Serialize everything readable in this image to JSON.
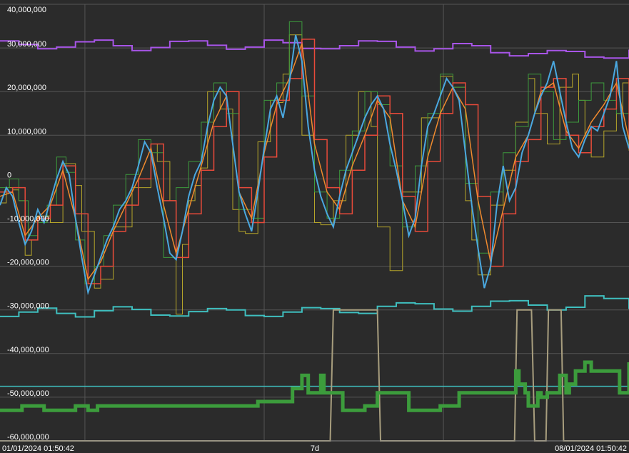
{
  "chart_data": {
    "type": "line",
    "title": "",
    "xlabel": "",
    "ylabel": "",
    "ylim": [
      -60000000,
      40000000
    ],
    "grid": true,
    "background": "#2b2b2b",
    "grid_color": "#555555",
    "text_color": "#ffffff",
    "y_ticks": [
      40000000,
      30000000,
      20000000,
      10000000,
      0,
      -10000000,
      -20000000,
      -30000000,
      -40000000,
      -50000000,
      -60000000
    ],
    "y_tick_labels": [
      "40,000,000",
      "30,000,000",
      "20,000,000",
      "10,000,000",
      "0",
      "-10,000,000",
      "-20,000,000",
      "-30,000,000",
      "-40,000,000",
      "-50,000,000",
      "-60,000,000"
    ],
    "x_labels": {
      "start": "01/01/2024 01:50:42",
      "middle": "7d",
      "end": "08/01/2024 01:50:42"
    },
    "series": [
      {
        "color": "#a855e8",
        "width": 2,
        "step": true,
        "x": [
          0,
          0.03,
          0.06,
          0.09,
          0.12,
          0.15,
          0.18,
          0.21,
          0.24,
          0.27,
          0.3,
          0.33,
          0.36,
          0.39,
          0.42,
          0.45,
          0.48,
          0.51,
          0.54,
          0.57,
          0.6,
          0.63,
          0.66,
          0.69,
          0.72,
          0.75,
          0.78,
          0.81,
          0.84,
          0.87,
          0.9,
          0.93,
          0.96,
          1.0
        ],
        "y": [
          31.6,
          30.8,
          29.8,
          30.2,
          31.4,
          31.8,
          30.5,
          29.4,
          30.1,
          31.5,
          31.6,
          30.6,
          29.7,
          30.2,
          31.8,
          31.2,
          29.9,
          29.8,
          30.5,
          31.6,
          31.5,
          30.2,
          29.3,
          29.8,
          31.0,
          30.5,
          28.9,
          28.2,
          28.7,
          29.4,
          29.2,
          27.9,
          27.7,
          29.6
        ]
      },
      {
        "color": "#3fbfbf",
        "width": 2,
        "step": true,
        "x": [
          0,
          0.03,
          0.06,
          0.09,
          0.12,
          0.15,
          0.18,
          0.21,
          0.24,
          0.27,
          0.3,
          0.33,
          0.36,
          0.39,
          0.42,
          0.45,
          0.48,
          0.51,
          0.54,
          0.57,
          0.6,
          0.63,
          0.66,
          0.69,
          0.72,
          0.75,
          0.78,
          0.81,
          0.84,
          0.87,
          0.9,
          0.93,
          0.96,
          1.0
        ],
        "y": [
          -31.5,
          -30.5,
          -29.6,
          -30.8,
          -31.6,
          -30.2,
          -29.3,
          -29.9,
          -31.2,
          -31.4,
          -30.4,
          -29.7,
          -30.0,
          -31.3,
          -31.5,
          -30.5,
          -29.5,
          -29.7,
          -30.6,
          -30.8,
          -29.2,
          -28.4,
          -28.6,
          -29.8,
          -30.3,
          -29.2,
          -28.0,
          -27.9,
          -28.9,
          -30.0,
          -29.4,
          -26.8,
          -27.4,
          -29.8
        ]
      },
      {
        "color": "#3fbfbf",
        "width": 1.5,
        "step": false,
        "x": [
          0,
          1.0
        ],
        "y": [
          -47.5,
          -47.5
        ]
      },
      {
        "color": "#b5a52a",
        "width": 1,
        "step": true,
        "x": [
          0.0,
          0.01,
          0.02,
          0.03,
          0.04,
          0.05,
          0.06,
          0.08,
          0.1,
          0.12,
          0.13,
          0.15,
          0.16,
          0.18,
          0.21,
          0.24,
          0.25,
          0.27,
          0.28,
          0.29,
          0.3,
          0.31,
          0.32,
          0.33,
          0.35,
          0.37,
          0.38,
          0.39,
          0.41,
          0.43,
          0.44,
          0.45,
          0.46,
          0.48,
          0.5,
          0.51,
          0.53,
          0.55,
          0.57,
          0.59,
          0.6,
          0.62,
          0.64,
          0.67,
          0.7,
          0.72,
          0.74,
          0.75,
          0.76,
          0.78,
          0.8,
          0.82,
          0.84,
          0.85,
          0.87,
          0.89,
          0.91,
          0.92,
          0.93,
          0.94,
          0.96,
          0.98,
          0.99,
          1.0
        ],
        "y": [
          -5.5,
          -2.0,
          -2.5,
          -5.0,
          -17.5,
          -14.0,
          -8.5,
          -10.0,
          3.5,
          -1.5,
          -12.0,
          -25.0,
          -23.0,
          -11.0,
          -2.0,
          8.0,
          4.0,
          -5.0,
          -31.0,
          -15.0,
          -5.0,
          -1.5,
          2.5,
          20.0,
          16.0,
          -7.0,
          -12.0,
          -12.5,
          8.5,
          18.0,
          17.5,
          24.0,
          33.0,
          10.0,
          -10.0,
          -10.5,
          -5.0,
          10.0,
          20.0,
          12.0,
          -11.0,
          -21.0,
          -3.0,
          14.0,
          23.5,
          21.0,
          -5.0,
          -14.0,
          -22.0,
          -6.0,
          2.0,
          13.0,
          23.0,
          15.0,
          8.0,
          21.0,
          24.0,
          18.0,
          10.0,
          5.0,
          11.0,
          15.0,
          22.0,
          6.5
        ]
      },
      {
        "color": "#3d9a3d",
        "width": 1,
        "step": true,
        "x": [
          0.0,
          0.015,
          0.03,
          0.045,
          0.06,
          0.075,
          0.09,
          0.105,
          0.12,
          0.135,
          0.15,
          0.165,
          0.18,
          0.2,
          0.22,
          0.24,
          0.26,
          0.28,
          0.3,
          0.32,
          0.34,
          0.36,
          0.38,
          0.4,
          0.42,
          0.44,
          0.46,
          0.48,
          0.5,
          0.52,
          0.54,
          0.56,
          0.58,
          0.6,
          0.62,
          0.64,
          0.66,
          0.68,
          0.7,
          0.72,
          0.74,
          0.76,
          0.78,
          0.8,
          0.82,
          0.84,
          0.86,
          0.88,
          0.9,
          0.92,
          0.94,
          0.96,
          0.98,
          1.0
        ],
        "y": [
          -2.0,
          0.0,
          -5.0,
          -13.0,
          -10.0,
          -6.0,
          5.0,
          1.5,
          -14.0,
          -24.0,
          -20.0,
          -13.0,
          -6.0,
          1.0,
          9.0,
          6.0,
          -18.0,
          -2.0,
          4.0,
          13.0,
          22.0,
          15.0,
          -7.0,
          -9.0,
          18.0,
          22.0,
          36.0,
          19.0,
          -3.0,
          -9.0,
          2.0,
          11.0,
          20.0,
          17.0,
          3.0,
          -11.0,
          3.0,
          15.0,
          24.0,
          21.0,
          -1.0,
          -17.0,
          -3.0,
          6.0,
          12.0,
          24.0,
          20.0,
          9.0,
          13.0,
          18.0,
          22.0,
          18.0,
          15.0,
          14.0
        ]
      },
      {
        "color": "#e84a3a",
        "width": 1.5,
        "step": true,
        "x": [
          0.0,
          0.02,
          0.04,
          0.06,
          0.08,
          0.1,
          0.12,
          0.14,
          0.16,
          0.18,
          0.2,
          0.22,
          0.24,
          0.26,
          0.28,
          0.3,
          0.32,
          0.34,
          0.36,
          0.38,
          0.4,
          0.42,
          0.44,
          0.46,
          0.48,
          0.5,
          0.52,
          0.54,
          0.56,
          0.58,
          0.6,
          0.62,
          0.64,
          0.66,
          0.68,
          0.7,
          0.72,
          0.74,
          0.76,
          0.78,
          0.8,
          0.82,
          0.84,
          0.86,
          0.88,
          0.9,
          0.92,
          0.94,
          0.96,
          0.98,
          1.0
        ],
        "y": [
          -3.0,
          -2.0,
          -14.0,
          -9.0,
          -6.0,
          3.0,
          -8.0,
          -24.0,
          -20.0,
          -12.0,
          -6.0,
          0.0,
          8.0,
          -5.0,
          -18.0,
          -8.0,
          2.0,
          12.0,
          20.0,
          -2.0,
          -10.0,
          5.0,
          18.0,
          23.0,
          32.0,
          9.0,
          -2.0,
          -8.0,
          2.0,
          10.0,
          19.0,
          15.0,
          -4.0,
          -12.0,
          4.0,
          15.0,
          22.0,
          17.0,
          -4.0,
          -20.0,
          -8.0,
          4.0,
          9.0,
          21.0,
          23.0,
          10.0,
          6.0,
          12.0,
          16.0,
          23.0,
          10.0
        ]
      },
      {
        "color": "#f08a2e",
        "width": 1.5,
        "step": false,
        "x": [
          0.0,
          0.02,
          0.04,
          0.06,
          0.08,
          0.1,
          0.12,
          0.14,
          0.16,
          0.18,
          0.2,
          0.22,
          0.24,
          0.26,
          0.28,
          0.3,
          0.32,
          0.34,
          0.36,
          0.38,
          0.4,
          0.42,
          0.44,
          0.46,
          0.48,
          0.5,
          0.52,
          0.54,
          0.56,
          0.58,
          0.6,
          0.62,
          0.64,
          0.66,
          0.68,
          0.7,
          0.72,
          0.74,
          0.76,
          0.78,
          0.8,
          0.82,
          0.84,
          0.86,
          0.88,
          0.9,
          0.92,
          0.94,
          0.96,
          0.98,
          1.0
        ],
        "y": [
          -4.0,
          -3.0,
          -13.0,
          -9.0,
          -6.0,
          2.0,
          -9.0,
          -23.0,
          -19.0,
          -12.0,
          -6.0,
          0.0,
          7.0,
          -6.0,
          -17.0,
          -7.0,
          3.0,
          13.0,
          19.0,
          -3.0,
          -9.0,
          6.0,
          17.0,
          23.0,
          31.0,
          8.0,
          -3.0,
          -7.0,
          3.0,
          10.0,
          18.0,
          14.0,
          -5.0,
          -11.0,
          5.0,
          15.0,
          21.0,
          16.0,
          -5.0,
          -19.0,
          -7.0,
          5.0,
          10.0,
          20.0,
          22.0,
          11.0,
          7.0,
          13.0,
          17.0,
          22.0,
          9.0
        ]
      },
      {
        "color": "#4aa8e0",
        "width": 2,
        "step": false,
        "x": [
          0.0,
          0.01,
          0.02,
          0.03,
          0.04,
          0.05,
          0.06,
          0.07,
          0.08,
          0.09,
          0.1,
          0.11,
          0.12,
          0.13,
          0.14,
          0.15,
          0.16,
          0.17,
          0.18,
          0.19,
          0.2,
          0.21,
          0.22,
          0.23,
          0.24,
          0.25,
          0.26,
          0.27,
          0.28,
          0.29,
          0.3,
          0.31,
          0.32,
          0.33,
          0.34,
          0.35,
          0.36,
          0.37,
          0.38,
          0.39,
          0.4,
          0.41,
          0.42,
          0.43,
          0.44,
          0.45,
          0.46,
          0.47,
          0.48,
          0.49,
          0.5,
          0.51,
          0.52,
          0.53,
          0.54,
          0.55,
          0.56,
          0.57,
          0.58,
          0.59,
          0.6,
          0.61,
          0.62,
          0.63,
          0.64,
          0.65,
          0.66,
          0.67,
          0.68,
          0.69,
          0.7,
          0.71,
          0.72,
          0.73,
          0.74,
          0.75,
          0.76,
          0.77,
          0.78,
          0.79,
          0.8,
          0.81,
          0.82,
          0.83,
          0.84,
          0.85,
          0.86,
          0.87,
          0.88,
          0.89,
          0.9,
          0.91,
          0.92,
          0.93,
          0.94,
          0.95,
          0.96,
          0.97,
          0.98,
          0.99,
          1.0
        ],
        "y": [
          -6.0,
          -2.0,
          -4.0,
          -10.0,
          -15.0,
          -12.0,
          -7.0,
          -10.0,
          -5.0,
          0.0,
          4.0,
          1.0,
          -9.0,
          -18.0,
          -26.0,
          -22.0,
          -18.0,
          -14.0,
          -11.0,
          -7.0,
          -5.0,
          -2.0,
          3.0,
          8.5,
          6.0,
          -2.0,
          -9.0,
          -17.0,
          -18.5,
          -12.0,
          -4.0,
          1.0,
          4.0,
          12.0,
          18.0,
          21.0,
          19.0,
          8.0,
          -3.0,
          -8.0,
          -12.0,
          -3.0,
          7.0,
          16.0,
          19.0,
          14.0,
          22.0,
          33.0,
          27.0,
          12.0,
          2.0,
          -4.0,
          -8.0,
          -11.0,
          -4.0,
          2.0,
          6.0,
          10.0,
          14.0,
          17.0,
          19.0,
          16.0,
          8.0,
          2.0,
          -5.0,
          -13.0,
          -9.0,
          3.0,
          12.0,
          15.0,
          19.0,
          23.0,
          21.0,
          18.0,
          6.0,
          -6.0,
          -16.0,
          -25.0,
          -20.0,
          -6.0,
          3.0,
          -5.0,
          -2.0,
          6.0,
          10.0,
          15.0,
          19.0,
          22.0,
          27.0,
          20.0,
          13.0,
          7.0,
          5.0,
          9.0,
          12.0,
          11.0,
          15.0,
          19.0,
          27.0,
          12.0,
          7.0
        ]
      },
      {
        "color": "#a89e7e",
        "width": 2,
        "step": false,
        "x": [
          0.0,
          0.525,
          0.53,
          0.6,
          0.605,
          0.818,
          0.822,
          0.845,
          0.85,
          0.868,
          0.872,
          0.892,
          0.896,
          1.0
        ],
        "y": [
          -60.0,
          -60.0,
          -30.0,
          -30.0,
          -60.0,
          -60.0,
          -30.0,
          -30.0,
          -60.0,
          -60.0,
          -30.0,
          -30.0,
          -60.0,
          -60.0
        ],
        "raw_x": [
          0.0,
          0.525,
          0.53,
          0.6,
          0.605,
          0.818,
          0.822,
          0.845,
          0.85,
          0.868,
          0.872,
          0.892,
          0.896,
          1.0
        ]
      },
      {
        "color": "#3c9c3c",
        "width": 5,
        "step": true,
        "x": [
          0.0,
          0.035,
          0.07,
          0.12,
          0.14,
          0.155,
          0.37,
          0.41,
          0.465,
          0.48,
          0.49,
          0.51,
          0.515,
          0.545,
          0.58,
          0.6,
          0.65,
          0.7,
          0.73,
          0.75,
          0.795,
          0.82,
          0.825,
          0.835,
          0.84,
          0.855,
          0.86,
          0.87,
          0.89,
          0.9,
          0.905,
          0.915,
          0.93,
          0.94,
          0.965,
          0.985,
          1.0
        ],
        "y": [
          -53.0,
          -52.0,
          -53.0,
          -52.0,
          -53.0,
          -52.0,
          -52.0,
          -51.0,
          -48.0,
          -45.0,
          -49.0,
          -45.0,
          -49.0,
          -53.0,
          -52.0,
          -49.0,
          -53.0,
          -52.0,
          -49.0,
          -49.0,
          -49.0,
          -44.0,
          -47.0,
          -49.0,
          -52.0,
          -49.0,
          -50.0,
          -49.0,
          -45.0,
          -49.0,
          -47.0,
          -44.0,
          -42.0,
          -44.0,
          -44.0,
          -49.0,
          -42.0
        ]
      }
    ]
  }
}
